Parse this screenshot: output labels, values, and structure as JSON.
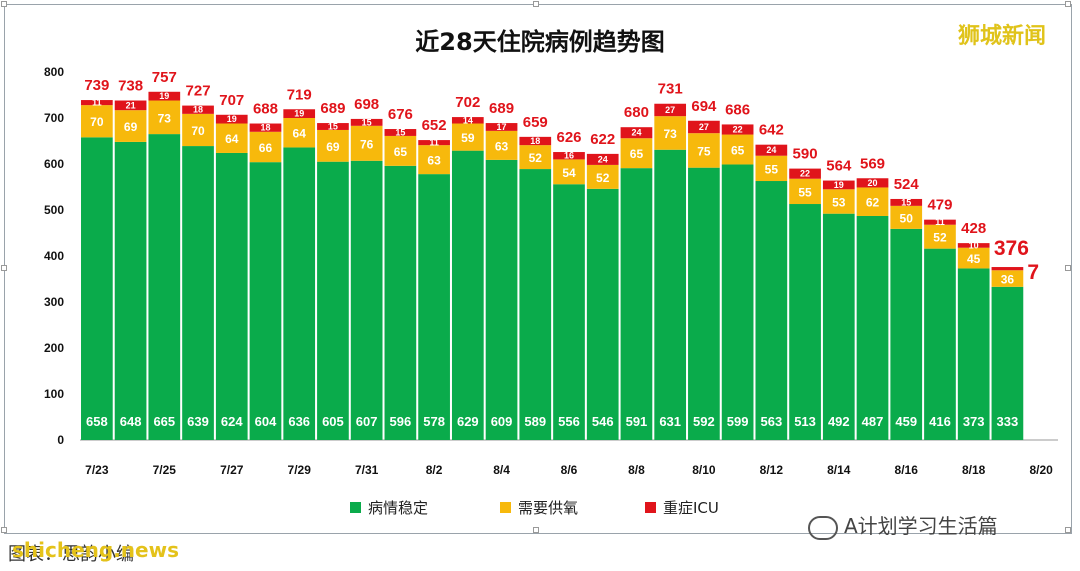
{
  "colors": {
    "stable": "#0aab4b",
    "oxygen": "#f7b90c",
    "icu": "#e0141b"
  },
  "watermark_top": "狮城新闻",
  "watermark_bottom": "A计划学习生活篇",
  "caption": "图表：思韵小编",
  "site": "shicheng.news",
  "chart_data": {
    "type": "bar",
    "stacked": true,
    "title": "近28天住院病例趋势图",
    "ylim": [
      0,
      800
    ],
    "yticks": [
      0,
      100,
      200,
      300,
      400,
      500,
      600,
      700,
      800
    ],
    "categories": [
      "7/23",
      "7/24",
      "7/25",
      "7/26",
      "7/27",
      "7/28",
      "7/29",
      "7/30",
      "7/31",
      "8/1",
      "8/2",
      "8/3",
      "8/4",
      "8/5",
      "8/6",
      "8/7",
      "8/8",
      "8/9",
      "8/10",
      "8/11",
      "8/12",
      "8/13",
      "8/14",
      "8/15",
      "8/16",
      "8/17",
      "8/18",
      "8/19",
      "8/20"
    ],
    "xtick_labels": [
      "7/23",
      "7/25",
      "7/27",
      "7/29",
      "7/31",
      "8/2",
      "8/4",
      "8/6",
      "8/8",
      "8/10",
      "8/12",
      "8/14",
      "8/16",
      "8/18",
      "8/20"
    ],
    "series": [
      {
        "name": "病情稳定",
        "values": [
          658,
          648,
          665,
          639,
          624,
          604,
          636,
          605,
          607,
          596,
          578,
          629,
          609,
          589,
          556,
          546,
          591,
          631,
          592,
          599,
          563,
          513,
          492,
          487,
          459,
          416,
          373,
          333,
          null
        ]
      },
      {
        "name": "需要供氧",
        "values": [
          70,
          69,
          73,
          70,
          64,
          66,
          64,
          69,
          76,
          65,
          63,
          59,
          63,
          52,
          54,
          52,
          65,
          73,
          75,
          65,
          55,
          55,
          53,
          62,
          50,
          52,
          45,
          36,
          null
        ]
      },
      {
        "name": "重症ICU",
        "values": [
          11,
          21,
          19,
          18,
          19,
          18,
          19,
          15,
          15,
          15,
          11,
          14,
          17,
          18,
          16,
          24,
          24,
          27,
          27,
          22,
          24,
          22,
          19,
          20,
          15,
          11,
          10,
          7,
          null
        ]
      }
    ],
    "totals": [
      739,
      738,
      757,
      727,
      707,
      688,
      719,
      689,
      698,
      676,
      652,
      702,
      689,
      659,
      626,
      622,
      680,
      731,
      694,
      686,
      642,
      590,
      564,
      569,
      524,
      479,
      428,
      376,
      null
    ],
    "legend": [
      "病情稳定",
      "需要供氧",
      "重症ICU"
    ]
  }
}
